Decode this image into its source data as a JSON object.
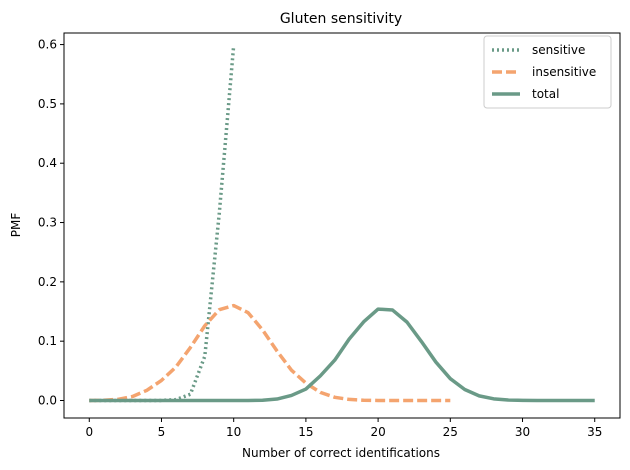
{
  "chart_data": {
    "type": "line",
    "title": "Gluten sensitivity",
    "xlabel": "Number of correct identifications",
    "ylabel": "PMF",
    "xlim": [
      -1.75,
      36.75
    ],
    "ylim": [
      -0.0295,
      0.6195
    ],
    "xticks": [
      0,
      5,
      10,
      15,
      20,
      25,
      30,
      35
    ],
    "xtick_labels": [
      "0",
      "5",
      "10",
      "15",
      "20",
      "25",
      "30",
      "35"
    ],
    "yticks": [
      0.0,
      0.1,
      0.2,
      0.3,
      0.4,
      0.5,
      0.6
    ],
    "ytick_labels": [
      "0.0",
      "0.1",
      "0.2",
      "0.3",
      "0.4",
      "0.5",
      "0.6"
    ],
    "grid": false,
    "legend_position": "top-right",
    "series": [
      {
        "name": "sensitive",
        "style": "dotted",
        "color": "#6a9a87",
        "x": [
          0,
          1,
          2,
          3,
          4,
          5,
          6,
          7,
          8,
          9,
          10
        ],
        "y": [
          0.0,
          0.0,
          0.0,
          0.0,
          0.0,
          0.0001,
          0.0015,
          0.0105,
          0.0746,
          0.315,
          0.5987
        ]
      },
      {
        "name": "insensitive",
        "style": "dashed",
        "color": "#f4a46f",
        "x": [
          0,
          1,
          2,
          3,
          4,
          5,
          6,
          7,
          8,
          9,
          10,
          11,
          12,
          13,
          14,
          15,
          16,
          17,
          18,
          19,
          20,
          21,
          22,
          23,
          24,
          25
        ],
        "y": [
          0.0001,
          0.0004,
          0.002,
          0.0068,
          0.0173,
          0.0339,
          0.0564,
          0.0893,
          0.126,
          0.153,
          0.16,
          0.148,
          0.119,
          0.0834,
          0.0511,
          0.0293,
          0.0137,
          0.0054,
          0.0018,
          0.0005,
          0.0001,
          0.0,
          0.0,
          0.0,
          0.0,
          0.0
        ]
      },
      {
        "name": "total",
        "style": "solid",
        "color": "#6a9a87",
        "x": [
          0,
          1,
          2,
          3,
          4,
          5,
          6,
          7,
          8,
          9,
          10,
          11,
          12,
          13,
          14,
          15,
          16,
          17,
          18,
          19,
          20,
          21,
          22,
          23,
          24,
          25,
          26,
          27,
          28,
          29,
          30,
          31,
          32,
          33,
          34,
          35
        ],
        "y": [
          0.0,
          0.0,
          0.0,
          0.0,
          0.0,
          0.0,
          0.0,
          0.0,
          0.0,
          0.0,
          0.0,
          0.0,
          0.0005,
          0.0025,
          0.0085,
          0.0193,
          0.0415,
          0.0681,
          0.1036,
          0.1326,
          0.1541,
          0.1525,
          0.1321,
          0.0994,
          0.0648,
          0.0368,
          0.0185,
          0.0078,
          0.0028,
          0.0009,
          0.0002,
          0.0,
          0.0,
          0.0,
          0.0,
          0.0
        ]
      }
    ]
  }
}
